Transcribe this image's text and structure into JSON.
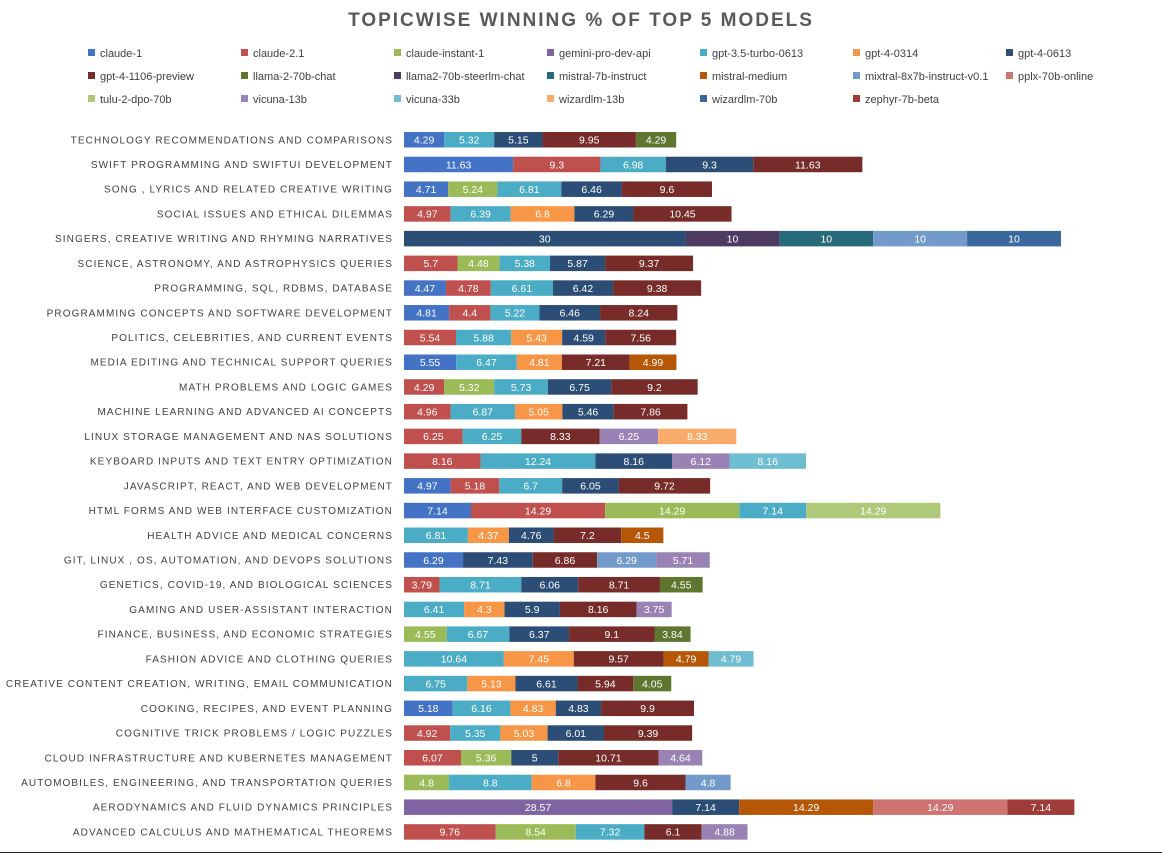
{
  "chart_data": {
    "type": "bar",
    "orientation": "horizontal",
    "stacked": true,
    "title": "TOPICWISE WINNING % OF TOP 5 MODELS",
    "legend_position": "top",
    "models": [
      {
        "name": "claude-1",
        "color": "#4472c4"
      },
      {
        "name": "claude-2.1",
        "color": "#c0504d"
      },
      {
        "name": "claude-instant-1",
        "color": "#9bbb59"
      },
      {
        "name": "gemini-pro-dev-api",
        "color": "#8064a2"
      },
      {
        "name": "gpt-3.5-turbo-0613",
        "color": "#4bacc6"
      },
      {
        "name": "gpt-4-0314",
        "color": "#f79646"
      },
      {
        "name": "gpt-4-0613",
        "color": "#2c4d75"
      },
      {
        "name": "gpt-4-1106-preview",
        "color": "#772c2a"
      },
      {
        "name": "llama-2-70b-chat",
        "color": "#5f7530"
      },
      {
        "name": "llama2-70b-steerlm-chat",
        "color": "#4d3b62"
      },
      {
        "name": "mistral-7b-instruct",
        "color": "#276a7c"
      },
      {
        "name": "mistral-medium",
        "color": "#b65708"
      },
      {
        "name": "mixtral-8x7b-instruct-v0.1",
        "color": "#729aca"
      },
      {
        "name": "pplx-70b-online",
        "color": "#cd7371"
      },
      {
        "name": "tulu-2-dpo-70b",
        "color": "#afc97a"
      },
      {
        "name": "vicuna-13b",
        "color": "#9983b5"
      },
      {
        "name": "vicuna-33b",
        "color": "#6fbdd1"
      },
      {
        "name": "wizardlm-13b",
        "color": "#f9ab6b"
      },
      {
        "name": "wizardlm-70b",
        "color": "#3a679c"
      },
      {
        "name": "zephyr-7b-beta",
        "color": "#9f3b38"
      }
    ],
    "categories": [
      {
        "label": "TECHNOLOGY RECOMMENDATIONS AND COMPARISONS",
        "segments": [
          {
            "model": "claude-1",
            "value": 4.29
          },
          {
            "model": "gpt-3.5-turbo-0613",
            "value": 5.32
          },
          {
            "model": "gpt-4-0613",
            "value": 5.15
          },
          {
            "model": "gpt-4-1106-preview",
            "value": 9.95
          },
          {
            "model": "llama-2-70b-chat",
            "value": 4.29
          }
        ]
      },
      {
        "label": "SWIFT PROGRAMMING AND SWIFTUI DEVELOPMENT",
        "segments": [
          {
            "model": "claude-1",
            "value": 11.63
          },
          {
            "model": "claude-2.1",
            "value": 9.3
          },
          {
            "model": "gpt-3.5-turbo-0613",
            "value": 6.98
          },
          {
            "model": "gpt-4-0613",
            "value": 9.3
          },
          {
            "model": "gpt-4-1106-preview",
            "value": 11.63
          }
        ]
      },
      {
        "label": "SONG , LYRICS AND RELATED CREATIVE WRITING",
        "segments": [
          {
            "model": "claude-1",
            "value": 4.71
          },
          {
            "model": "claude-instant-1",
            "value": 5.24
          },
          {
            "model": "gpt-3.5-turbo-0613",
            "value": 6.81
          },
          {
            "model": "gpt-4-0613",
            "value": 6.46
          },
          {
            "model": "gpt-4-1106-preview",
            "value": 9.6
          }
        ]
      },
      {
        "label": "SOCIAL ISSUES AND ETHICAL DILEMMAS",
        "segments": [
          {
            "model": "claude-2.1",
            "value": 4.97
          },
          {
            "model": "gpt-3.5-turbo-0613",
            "value": 6.39
          },
          {
            "model": "gpt-4-0314",
            "value": 6.8
          },
          {
            "model": "gpt-4-0613",
            "value": 6.29
          },
          {
            "model": "gpt-4-1106-preview",
            "value": 10.45
          }
        ]
      },
      {
        "label": "SINGERS, CREATIVE WRITING AND RHYMING NARRATIVES",
        "segments": [
          {
            "model": "gpt-4-0613",
            "value": 30
          },
          {
            "model": "llama2-70b-steerlm-chat",
            "value": 10
          },
          {
            "model": "mistral-7b-instruct",
            "value": 10
          },
          {
            "model": "mixtral-8x7b-instruct-v0.1",
            "value": 10
          },
          {
            "model": "wizardlm-70b",
            "value": 10
          }
        ]
      },
      {
        "label": "SCIENCE, ASTRONOMY, AND ASTROPHYSICS QUERIES",
        "segments": [
          {
            "model": "claude-2.1",
            "value": 5.7
          },
          {
            "model": "claude-instant-1",
            "value": 4.48
          },
          {
            "model": "gpt-3.5-turbo-0613",
            "value": 5.38
          },
          {
            "model": "gpt-4-0613",
            "value": 5.87
          },
          {
            "model": "gpt-4-1106-preview",
            "value": 9.37
          }
        ]
      },
      {
        "label": "PROGRAMMING, SQL, RDBMS, DATABASE",
        "segments": [
          {
            "model": "claude-1",
            "value": 4.47
          },
          {
            "model": "claude-2.1",
            "value": 4.78
          },
          {
            "model": "gpt-3.5-turbo-0613",
            "value": 6.61
          },
          {
            "model": "gpt-4-0613",
            "value": 6.42
          },
          {
            "model": "gpt-4-1106-preview",
            "value": 9.38
          }
        ]
      },
      {
        "label": "PROGRAMMING CONCEPTS AND SOFTWARE DEVELOPMENT",
        "segments": [
          {
            "model": "claude-1",
            "value": 4.81
          },
          {
            "model": "claude-2.1",
            "value": 4.4
          },
          {
            "model": "gpt-3.5-turbo-0613",
            "value": 5.22
          },
          {
            "model": "gpt-4-0613",
            "value": 6.46
          },
          {
            "model": "gpt-4-1106-preview",
            "value": 8.24
          }
        ]
      },
      {
        "label": "POLITICS, CELEBRITIES, AND CURRENT EVENTS",
        "segments": [
          {
            "model": "claude-2.1",
            "value": 5.54
          },
          {
            "model": "gpt-3.5-turbo-0613",
            "value": 5.88
          },
          {
            "model": "gpt-4-0314",
            "value": 5.43
          },
          {
            "model": "gpt-4-0613",
            "value": 4.59
          },
          {
            "model": "gpt-4-1106-preview",
            "value": 7.56
          }
        ]
      },
      {
        "label": "MEDIA EDITING AND TECHNICAL SUPPORT QUERIES",
        "segments": [
          {
            "model": "claude-1",
            "value": 5.55
          },
          {
            "model": "gpt-3.5-turbo-0613",
            "value": 6.47
          },
          {
            "model": "gpt-4-0314",
            "value": 4.81
          },
          {
            "model": "gpt-4-1106-preview",
            "value": 7.21
          },
          {
            "model": "mistral-medium",
            "value": 4.99
          }
        ]
      },
      {
        "label": "MATH PROBLEMS AND LOGIC GAMES",
        "segments": [
          {
            "model": "claude-2.1",
            "value": 4.29
          },
          {
            "model": "claude-instant-1",
            "value": 5.32
          },
          {
            "model": "gpt-3.5-turbo-0613",
            "value": 5.73
          },
          {
            "model": "gpt-4-0613",
            "value": 6.75
          },
          {
            "model": "gpt-4-1106-preview",
            "value": 9.2
          }
        ]
      },
      {
        "label": "MACHINE LEARNING AND ADVANCED AI CONCEPTS",
        "segments": [
          {
            "model": "claude-2.1",
            "value": 4.96
          },
          {
            "model": "gpt-3.5-turbo-0613",
            "value": 6.87
          },
          {
            "model": "gpt-4-0314",
            "value": 5.05
          },
          {
            "model": "gpt-4-0613",
            "value": 5.46
          },
          {
            "model": "gpt-4-1106-preview",
            "value": 7.86
          }
        ]
      },
      {
        "label": "LINUX STORAGE MANAGEMENT AND NAS SOLUTIONS",
        "segments": [
          {
            "model": "claude-2.1",
            "value": 6.25
          },
          {
            "model": "gpt-3.5-turbo-0613",
            "value": 6.25
          },
          {
            "model": "gpt-4-1106-preview",
            "value": 8.33
          },
          {
            "model": "vicuna-13b",
            "value": 6.25
          },
          {
            "model": "wizardlm-13b",
            "value": 8.33
          }
        ]
      },
      {
        "label": "KEYBOARD INPUTS AND TEXT ENTRY OPTIMIZATION",
        "segments": [
          {
            "model": "claude-2.1",
            "value": 8.16
          },
          {
            "model": "gpt-3.5-turbo-0613",
            "value": 12.24
          },
          {
            "model": "gpt-4-0613",
            "value": 8.16
          },
          {
            "model": "vicuna-13b",
            "value": 6.12
          },
          {
            "model": "vicuna-33b",
            "value": 8.16
          }
        ]
      },
      {
        "label": "JAVASCRIPT, REACT, AND WEB DEVELOPMENT",
        "segments": [
          {
            "model": "claude-1",
            "value": 4.97
          },
          {
            "model": "claude-2.1",
            "value": 5.18
          },
          {
            "model": "gpt-3.5-turbo-0613",
            "value": 6.7
          },
          {
            "model": "gpt-4-0613",
            "value": 6.05
          },
          {
            "model": "gpt-4-1106-preview",
            "value": 9.72
          }
        ]
      },
      {
        "label": "HTML FORMS AND WEB INTERFACE CUSTOMIZATION",
        "segments": [
          {
            "model": "claude-1",
            "value": 7.14
          },
          {
            "model": "claude-2.1",
            "value": 14.29
          },
          {
            "model": "claude-instant-1",
            "value": 14.29
          },
          {
            "model": "gpt-3.5-turbo-0613",
            "value": 7.14
          },
          {
            "model": "tulu-2-dpo-70b",
            "value": 14.29
          }
        ]
      },
      {
        "label": "HEALTH ADVICE AND MEDICAL CONCERNS",
        "segments": [
          {
            "model": "gpt-3.5-turbo-0613",
            "value": 6.81
          },
          {
            "model": "gpt-4-0314",
            "value": 4.37
          },
          {
            "model": "gpt-4-0613",
            "value": 4.76
          },
          {
            "model": "gpt-4-1106-preview",
            "value": 7.2
          },
          {
            "model": "mistral-medium",
            "value": 4.5
          }
        ]
      },
      {
        "label": "GIT, LINUX , OS,  AUTOMATION, AND DEVOPS SOLUTIONS",
        "segments": [
          {
            "model": "claude-1",
            "value": 6.29
          },
          {
            "model": "gpt-4-0613",
            "value": 7.43
          },
          {
            "model": "gpt-4-1106-preview",
            "value": 6.86
          },
          {
            "model": "mixtral-8x7b-instruct-v0.1",
            "value": 6.29
          },
          {
            "model": "vicuna-13b",
            "value": 5.71
          }
        ]
      },
      {
        "label": "GENETICS, COVID-19, AND BIOLOGICAL SCIENCES",
        "segments": [
          {
            "model": "claude-2.1",
            "value": 3.79
          },
          {
            "model": "gpt-3.5-turbo-0613",
            "value": 8.71
          },
          {
            "model": "gpt-4-0613",
            "value": 6.06
          },
          {
            "model": "gpt-4-1106-preview",
            "value": 8.71
          },
          {
            "model": "llama-2-70b-chat",
            "value": 4.55
          }
        ]
      },
      {
        "label": "GAMING AND USER-ASSISTANT INTERACTION",
        "segments": [
          {
            "model": "gpt-3.5-turbo-0613",
            "value": 6.41
          },
          {
            "model": "gpt-4-0314",
            "value": 4.3
          },
          {
            "model": "gpt-4-0613",
            "value": 5.9
          },
          {
            "model": "gpt-4-1106-preview",
            "value": 8.16
          },
          {
            "model": "vicuna-13b",
            "value": 3.75
          }
        ]
      },
      {
        "label": "FINANCE, BUSINESS, AND ECONOMIC STRATEGIES",
        "segments": [
          {
            "model": "claude-instant-1",
            "value": 4.55
          },
          {
            "model": "gpt-3.5-turbo-0613",
            "value": 6.67
          },
          {
            "model": "gpt-4-0613",
            "value": 6.37
          },
          {
            "model": "gpt-4-1106-preview",
            "value": 9.1
          },
          {
            "model": "llama-2-70b-chat",
            "value": 3.84
          }
        ]
      },
      {
        "label": "FASHION ADVICE AND CLOTHING QUERIES",
        "segments": [
          {
            "model": "gpt-3.5-turbo-0613",
            "value": 10.64
          },
          {
            "model": "gpt-4-0314",
            "value": 7.45
          },
          {
            "model": "gpt-4-1106-preview",
            "value": 9.57
          },
          {
            "model": "mistral-medium",
            "value": 4.79
          },
          {
            "model": "vicuna-33b",
            "value": 4.79
          }
        ]
      },
      {
        "label": "CREATIVE CONTENT CREATION, WRITING, EMAIL COMMUNICATION",
        "segments": [
          {
            "model": "gpt-3.5-turbo-0613",
            "value": 6.75
          },
          {
            "model": "gpt-4-0314",
            "value": 5.13
          },
          {
            "model": "gpt-4-0613",
            "value": 6.61
          },
          {
            "model": "gpt-4-1106-preview",
            "value": 5.94
          },
          {
            "model": "llama-2-70b-chat",
            "value": 4.05
          }
        ]
      },
      {
        "label": "COOKING, RECIPES, AND EVENT PLANNING",
        "segments": [
          {
            "model": "claude-1",
            "value": 5.18
          },
          {
            "model": "gpt-3.5-turbo-0613",
            "value": 6.16
          },
          {
            "model": "gpt-4-0314",
            "value": 4.83
          },
          {
            "model": "gpt-4-0613",
            "value": 4.83
          },
          {
            "model": "gpt-4-1106-preview",
            "value": 9.9
          }
        ]
      },
      {
        "label": "COGNITIVE TRICK PROBLEMS / LOGIC PUZZLES",
        "segments": [
          {
            "model": "claude-2.1",
            "value": 4.92
          },
          {
            "model": "gpt-3.5-turbo-0613",
            "value": 5.35
          },
          {
            "model": "gpt-4-0314",
            "value": 5.03
          },
          {
            "model": "gpt-4-0613",
            "value": 6.01
          },
          {
            "model": "gpt-4-1106-preview",
            "value": 9.39
          }
        ]
      },
      {
        "label": "CLOUD INFRASTRUCTURE AND KUBERNETES MANAGEMENT",
        "segments": [
          {
            "model": "claude-2.1",
            "value": 6.07
          },
          {
            "model": "claude-instant-1",
            "value": 5.36
          },
          {
            "model": "gpt-4-0613",
            "value": 5
          },
          {
            "model": "gpt-4-1106-preview",
            "value": 10.71
          },
          {
            "model": "vicuna-13b",
            "value": 4.64
          }
        ]
      },
      {
        "label": "AUTOMOBILES, ENGINEERING, AND TRANSPORTATION QUERIES",
        "segments": [
          {
            "model": "claude-instant-1",
            "value": 4.8
          },
          {
            "model": "gpt-3.5-turbo-0613",
            "value": 8.8
          },
          {
            "model": "gpt-4-0314",
            "value": 6.8
          },
          {
            "model": "gpt-4-1106-preview",
            "value": 9.6
          },
          {
            "model": "mixtral-8x7b-instruct-v0.1",
            "value": 4.8
          }
        ]
      },
      {
        "label": "AERODYNAMICS AND FLUID DYNAMICS PRINCIPLES",
        "segments": [
          {
            "model": "gemini-pro-dev-api",
            "value": 28.57
          },
          {
            "model": "gpt-4-0613",
            "value": 7.14
          },
          {
            "model": "mistral-medium",
            "value": 14.29
          },
          {
            "model": "pplx-70b-online",
            "value": 14.29
          },
          {
            "model": "zephyr-7b-beta",
            "value": 7.14
          }
        ]
      },
      {
        "label": "ADVANCED CALCULUS AND MATHEMATICAL THEOREMS",
        "segments": [
          {
            "model": "claude-2.1",
            "value": 9.76
          },
          {
            "model": "claude-instant-1",
            "value": 8.54
          },
          {
            "model": "gpt-3.5-turbo-0613",
            "value": 7.32
          },
          {
            "model": "gpt-4-1106-preview",
            "value": 6.1
          },
          {
            "model": "vicuna-13b",
            "value": 4.88
          }
        ]
      }
    ]
  }
}
